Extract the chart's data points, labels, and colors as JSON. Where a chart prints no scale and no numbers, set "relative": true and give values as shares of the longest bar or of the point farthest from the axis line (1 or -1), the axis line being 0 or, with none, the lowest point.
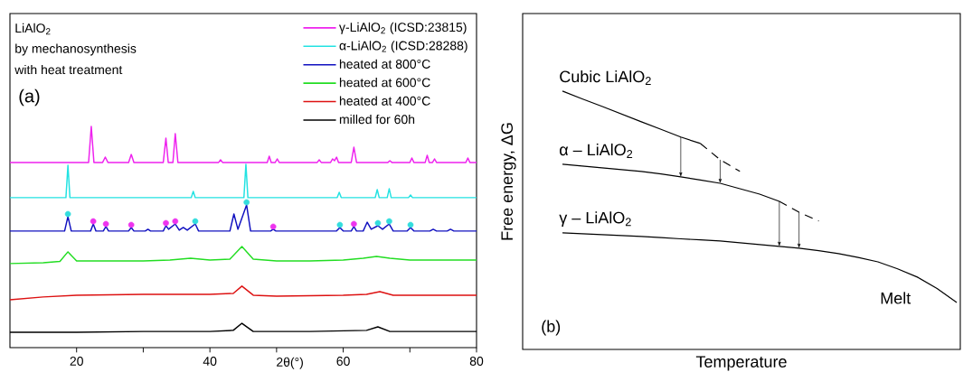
{
  "chart_data": [
    {
      "type": "line",
      "xlabel": "2θ(°)",
      "annotations": [
        "LiAlO$_{2}$",
        "by mechanosynthesis",
        "with heat treatment",
        "(a)"
      ],
      "xlim": [
        10,
        80
      ],
      "xticks": [
        20,
        {
          "value": 30,
          "label": null
        },
        40,
        {
          "value": 50,
          "label": null
        },
        60,
        {
          "value": 70,
          "label": null
        },
        80
      ],
      "relative": true,
      "legend": "top right",
      "series": [
        {
          "name": "γ-LiAlO$_{2}$ (ICSD:23815)",
          "color": "#ee22ee",
          "x": [
            10,
            21.8,
            22.2,
            22.6,
            23.9,
            24.3,
            24.7,
            27.8,
            28.2,
            28.6,
            33.0,
            33.4,
            33.75,
            34.45,
            34.8,
            35.2,
            41.3,
            41.6,
            41.9,
            48.6,
            48.9,
            49.2,
            49.8,
            50.1,
            50.4,
            56.1,
            56.4,
            56.7,
            58.1,
            58.4,
            58.7,
            59.0,
            59.3,
            61.2,
            61.6,
            62.0,
            66.7,
            67.0,
            67.3,
            70.0,
            70.3,
            70.6,
            72.3,
            72.6,
            72.9,
            73.4,
            73.7,
            74.0,
            78.4,
            78.7,
            79.0,
            80
          ],
          "values": [
            0.837,
            0.837,
            1.0,
            0.837,
            0.837,
            0.861,
            0.837,
            0.837,
            0.873,
            0.837,
            0.837,
            0.947,
            0.837,
            0.837,
            0.967,
            0.837,
            0.837,
            0.849,
            0.837,
            0.837,
            0.865,
            0.837,
            0.837,
            0.853,
            0.837,
            0.837,
            0.849,
            0.837,
            0.837,
            0.853,
            0.845,
            0.861,
            0.837,
            0.837,
            0.906,
            0.837,
            0.837,
            0.845,
            0.837,
            0.837,
            0.857,
            0.837,
            0.837,
            0.869,
            0.837,
            0.837,
            0.853,
            0.837,
            0.837,
            0.857,
            0.837,
            0.837
          ]
        },
        {
          "name": "α-LiAlO$_{2}$ (ICSD:28288)",
          "color": "#22e2e2",
          "x": [
            10,
            18.4,
            18.7,
            19.0,
            37.2,
            37.5,
            37.8,
            45.1,
            45.4,
            45.7,
            59.1,
            59.4,
            59.7,
            64.8,
            65.1,
            65.4,
            66.6,
            66.9,
            67.2,
            69.8,
            70.1,
            70.4,
            80
          ],
          "values": [
            0.678,
            0.678,
            0.824,
            0.678,
            0.678,
            0.706,
            0.678,
            0.678,
            0.829,
            0.678,
            0.678,
            0.702,
            0.678,
            0.678,
            0.714,
            0.678,
            0.678,
            0.718,
            0.678,
            0.678,
            0.69,
            0.678,
            0.678
          ]
        },
        {
          "name": "heated at 800°C",
          "color": "#1010c0",
          "x": [
            10,
            18.2,
            18.7,
            19.2,
            22.1,
            22.5,
            22.9,
            24.0,
            24.4,
            24.8,
            27.8,
            28.2,
            28.6,
            30.3,
            30.7,
            31.1,
            33.0,
            33.4,
            33.8,
            34.8,
            35.4,
            36.0,
            36.6,
            37.8,
            38.3,
            43.0,
            43.6,
            44.2,
            45.5,
            46.1,
            49.1,
            49.5,
            49.9,
            59.0,
            59.5,
            60.0,
            61.2,
            61.6,
            62.0,
            63.0,
            63.6,
            64.2,
            65.2,
            65.9,
            66.9,
            67.5,
            69.6,
            70.1,
            70.6,
            73.0,
            73.5,
            74.0,
            75.6,
            76.1,
            76.6,
            80
          ],
          "values": [
            0.527,
            0.527,
            0.592,
            0.527,
            0.527,
            0.559,
            0.527,
            0.527,
            0.547,
            0.527,
            0.527,
            0.543,
            0.527,
            0.527,
            0.535,
            0.527,
            0.527,
            0.551,
            0.535,
            0.559,
            0.531,
            0.543,
            0.531,
            0.559,
            0.527,
            0.527,
            0.604,
            0.535,
            0.645,
            0.527,
            0.527,
            0.535,
            0.527,
            0.527,
            0.543,
            0.527,
            0.527,
            0.547,
            0.527,
            0.527,
            0.567,
            0.535,
            0.551,
            0.535,
            0.559,
            0.527,
            0.527,
            0.543,
            0.527,
            0.527,
            0.535,
            0.527,
            0.527,
            0.535,
            0.527,
            0.527
          ]
        },
        {
          "name": "heated at 600°C",
          "color": "#22dd22",
          "x": [
            10,
            15,
            17.5,
            18.7,
            20,
            25,
            30,
            34,
            37.1,
            40,
            43,
            44.8,
            46.5,
            50,
            55,
            60,
            63,
            65,
            67,
            70,
            80
          ],
          "values": [
            0.38,
            0.384,
            0.39,
            0.433,
            0.392,
            0.392,
            0.392,
            0.396,
            0.404,
            0.396,
            0.4,
            0.457,
            0.4,
            0.392,
            0.392,
            0.396,
            0.404,
            0.412,
            0.404,
            0.396,
            0.396
          ]
        },
        {
          "name": "heated at 400°C",
          "color": "#dd1111",
          "x": [
            10,
            15,
            20,
            30,
            40,
            43.5,
            44.8,
            46.5,
            50,
            60,
            63.5,
            65.5,
            67.5,
            80
          ],
          "values": [
            0.216,
            0.229,
            0.237,
            0.241,
            0.241,
            0.245,
            0.278,
            0.237,
            0.233,
            0.237,
            0.241,
            0.253,
            0.237,
            0.237
          ]
        },
        {
          "name": "milled for 60h",
          "color": "#000000",
          "x": [
            10,
            20,
            30,
            40,
            43.5,
            44.8,
            46.5,
            55,
            63.5,
            65.2,
            67,
            80
          ],
          "values": [
            0.069,
            0.069,
            0.073,
            0.073,
            0.078,
            0.11,
            0.073,
            0.073,
            0.078,
            0.094,
            0.073,
            0.073
          ]
        },
        {
          "type": "scatter",
          "marker": "circle",
          "color": "#33dddd",
          "x": [
            18.7,
            37.8,
            45.5,
            59.5,
            65.2,
            66.9,
            70.1
          ],
          "values": [
            0.604,
            0.571,
            0.657,
            0.555,
            0.563,
            0.571,
            0.555
          ]
        },
        {
          "type": "scatter",
          "marker": "circle",
          "color": "#ee33ee",
          "x": [
            22.5,
            24.4,
            28.2,
            33.4,
            34.8,
            49.5,
            61.6
          ],
          "values": [
            0.571,
            0.559,
            0.555,
            0.563,
            0.571,
            0.547,
            0.559
          ]
        }
      ]
    },
    {
      "type": "line",
      "xlabel": "Temperature",
      "ylabel": "Free energy, ΔG",
      "annotations": [
        "Melt",
        "(b)"
      ],
      "categories": [
        null,
        null,
        null,
        null,
        null,
        null,
        null,
        null,
        null,
        null,
        null,
        null,
        null,
        null,
        null,
        null,
        null,
        null,
        null,
        null,
        null
      ],
      "relative": true,
      "legend": false,
      "series": [
        {
          "name": "Cubic LiAlO$_{2}$",
          "color": "#000000",
          "values": [
            1.0,
            0.97,
            0.941,
            0.911,
            0.881,
            0.852,
            0.822,
            0.797,
            null,
            null,
            null,
            null,
            null,
            null,
            null,
            null,
            null,
            null,
            null,
            null,
            null
          ]
        },
        {
          "color": "#000000",
          "line_style": "dashed",
          "values": [
            null,
            null,
            null,
            null,
            null,
            null,
            null,
            0.797,
            0.734,
            0.689,
            null,
            null,
            null,
            null,
            null,
            null,
            null,
            null,
            null,
            null,
            null
          ]
        },
        {
          "name": "α – LiAlO$_{2}$",
          "color": "#000000",
          "values": [
            0.717,
            0.71,
            0.703,
            0.696,
            0.689,
            0.679,
            0.668,
            0.656,
            0.643,
            0.622,
            0.601,
            0.573,
            null,
            null,
            null,
            null,
            null,
            null,
            null,
            null,
            null
          ]
        },
        {
          "color": "#000000",
          "line_style": "dashed",
          "values": [
            null,
            null,
            null,
            null,
            null,
            null,
            null,
            null,
            null,
            null,
            null,
            0.573,
            0.531,
            0.497,
            null,
            null,
            null,
            null,
            null,
            null,
            null
          ]
        },
        {
          "name": "γ – LiAlO$_{2}$",
          "color": "#000000",
          "values": [
            0.451,
            0.448,
            0.444,
            0.441,
            0.437,
            0.433,
            0.428,
            0.424,
            0.42,
            0.413,
            0.406,
            0.399,
            0.392,
            0.382,
            0.371,
            0.356,
            0.339,
            0.312,
            0.28,
            0.236,
            0.182
          ]
        }
      ]
    }
  ]
}
